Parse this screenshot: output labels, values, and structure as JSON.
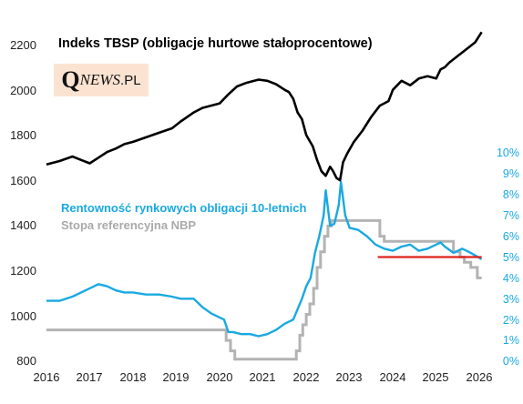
{
  "chart_data": {
    "type": "line",
    "title": "Indeks TBSP (obligacje hurtowe stałoprocentowe)",
    "logo": {
      "first": "Q",
      "middle": "NEWS",
      "last": ".PL"
    },
    "x_ticks": [
      "2016",
      "2017",
      "2018",
      "2019",
      "2020",
      "2021",
      "2022",
      "2023",
      "2024",
      "2025",
      "2026"
    ],
    "x_range": [
      2016.0,
      2026.1
    ],
    "left_axis": {
      "range": [
        800,
        2200
      ],
      "ticks": [
        "800",
        "1000",
        "1200",
        "1400",
        "1600",
        "1800",
        "2000",
        "2200"
      ]
    },
    "right_axis": {
      "range": [
        0,
        10
      ],
      "ticks": [
        "0%",
        "1%",
        "2%",
        "3%",
        "4%",
        "5%",
        "6%",
        "7%",
        "8%",
        "9%",
        "10%"
      ]
    },
    "legend": [
      "Rentowność rynkowych obligacji 10-letnich",
      "Stopa referencyjna NBP"
    ],
    "colors": {
      "tbsp": "#000000",
      "yield": "#19a9e1",
      "rate": "#b3b3b3",
      "reference_line": "#e0221c"
    },
    "series": [
      {
        "key": "tbsp",
        "axis": "left",
        "x": [
          2016.0,
          2016.3,
          2016.6,
          2016.8,
          2017.0,
          2017.2,
          2017.4,
          2017.6,
          2017.8,
          2018.0,
          2018.3,
          2018.6,
          2018.9,
          2019.1,
          2019.4,
          2019.6,
          2019.8,
          2020.0,
          2020.2,
          2020.4,
          2020.6,
          2020.9,
          2021.1,
          2021.3,
          2021.5,
          2021.6,
          2021.7,
          2021.8,
          2021.9,
          2022.0,
          2022.15,
          2022.25,
          2022.35,
          2022.45,
          2022.55,
          2022.62,
          2022.7,
          2022.78,
          2022.85,
          2022.95,
          2023.1,
          2023.3,
          2023.5,
          2023.7,
          2023.9,
          2024.0,
          2024.2,
          2024.4,
          2024.6,
          2024.8,
          2025.0,
          2025.1,
          2025.2,
          2025.3,
          2025.5,
          2025.7,
          2025.9,
          2026.05
        ],
        "values": [
          1670,
          1685,
          1705,
          1690,
          1675,
          1700,
          1725,
          1740,
          1760,
          1770,
          1790,
          1810,
          1830,
          1860,
          1900,
          1920,
          1930,
          1940,
          1980,
          2015,
          2030,
          2045,
          2040,
          2025,
          2000,
          1990,
          1960,
          1900,
          1870,
          1800,
          1750,
          1690,
          1640,
          1620,
          1660,
          1640,
          1610,
          1600,
          1680,
          1720,
          1770,
          1820,
          1880,
          1930,
          1950,
          2000,
          2040,
          2020,
          2050,
          2060,
          2050,
          2090,
          2100,
          2120,
          2150,
          2180,
          2210,
          2255
        ]
      },
      {
        "key": "yield",
        "axis": "right",
        "x": [
          2016.0,
          2016.3,
          2016.6,
          2016.8,
          2017.0,
          2017.2,
          2017.4,
          2017.6,
          2017.8,
          2018.0,
          2018.3,
          2018.6,
          2018.9,
          2019.1,
          2019.4,
          2019.6,
          2019.8,
          2020.0,
          2020.1,
          2020.2,
          2020.3,
          2020.5,
          2020.7,
          2020.9,
          2021.1,
          2021.3,
          2021.5,
          2021.7,
          2021.8,
          2021.9,
          2022.0,
          2022.1,
          2022.2,
          2022.3,
          2022.4,
          2022.45,
          2022.55,
          2022.65,
          2022.75,
          2022.8,
          2022.9,
          2023.0,
          2023.2,
          2023.4,
          2023.6,
          2023.8,
          2024.0,
          2024.2,
          2024.4,
          2024.6,
          2024.8,
          2025.0,
          2025.1,
          2025.2,
          2025.4,
          2025.6,
          2025.8,
          2026.05
        ],
        "values": [
          2.9,
          2.9,
          3.1,
          3.3,
          3.5,
          3.7,
          3.6,
          3.4,
          3.3,
          3.3,
          3.2,
          3.2,
          3.1,
          3.0,
          3.0,
          2.6,
          2.3,
          2.1,
          2.0,
          1.4,
          1.4,
          1.3,
          1.3,
          1.2,
          1.3,
          1.5,
          1.8,
          2.0,
          2.5,
          3.0,
          3.6,
          4.0,
          5.2,
          6.0,
          7.0,
          8.2,
          6.5,
          6.6,
          7.5,
          8.6,
          7.0,
          6.4,
          6.3,
          6.0,
          5.6,
          5.4,
          5.3,
          5.5,
          5.6,
          5.3,
          5.4,
          5.6,
          5.7,
          5.5,
          5.2,
          5.4,
          5.2,
          4.9
        ]
      },
      {
        "key": "rate",
        "axis": "right",
        "step": true,
        "x": [
          2016.0,
          2020.15,
          2020.25,
          2020.35,
          2020.45,
          2021.77,
          2021.85,
          2021.92,
          2022.0,
          2022.08,
          2022.17,
          2022.25,
          2022.33,
          2022.42,
          2022.5,
          2022.58,
          2022.67,
          2022.75,
          2023.7,
          2023.8,
          2025.4,
          2025.55,
          2025.65,
          2025.8,
          2025.95,
          2026.05
        ],
        "values": [
          1.5,
          1.0,
          0.5,
          0.1,
          0.1,
          0.5,
          1.25,
          1.75,
          2.25,
          2.75,
          3.5,
          4.5,
          5.25,
          6.0,
          6.5,
          6.75,
          6.75,
          6.75,
          6.0,
          5.75,
          5.25,
          5.0,
          4.75,
          4.5,
          4.0,
          4.0
        ]
      },
      {
        "key": "reference_line",
        "axis": "right",
        "x": [
          2023.65,
          2026.05
        ],
        "values": [
          5.0,
          5.0
        ]
      }
    ]
  }
}
